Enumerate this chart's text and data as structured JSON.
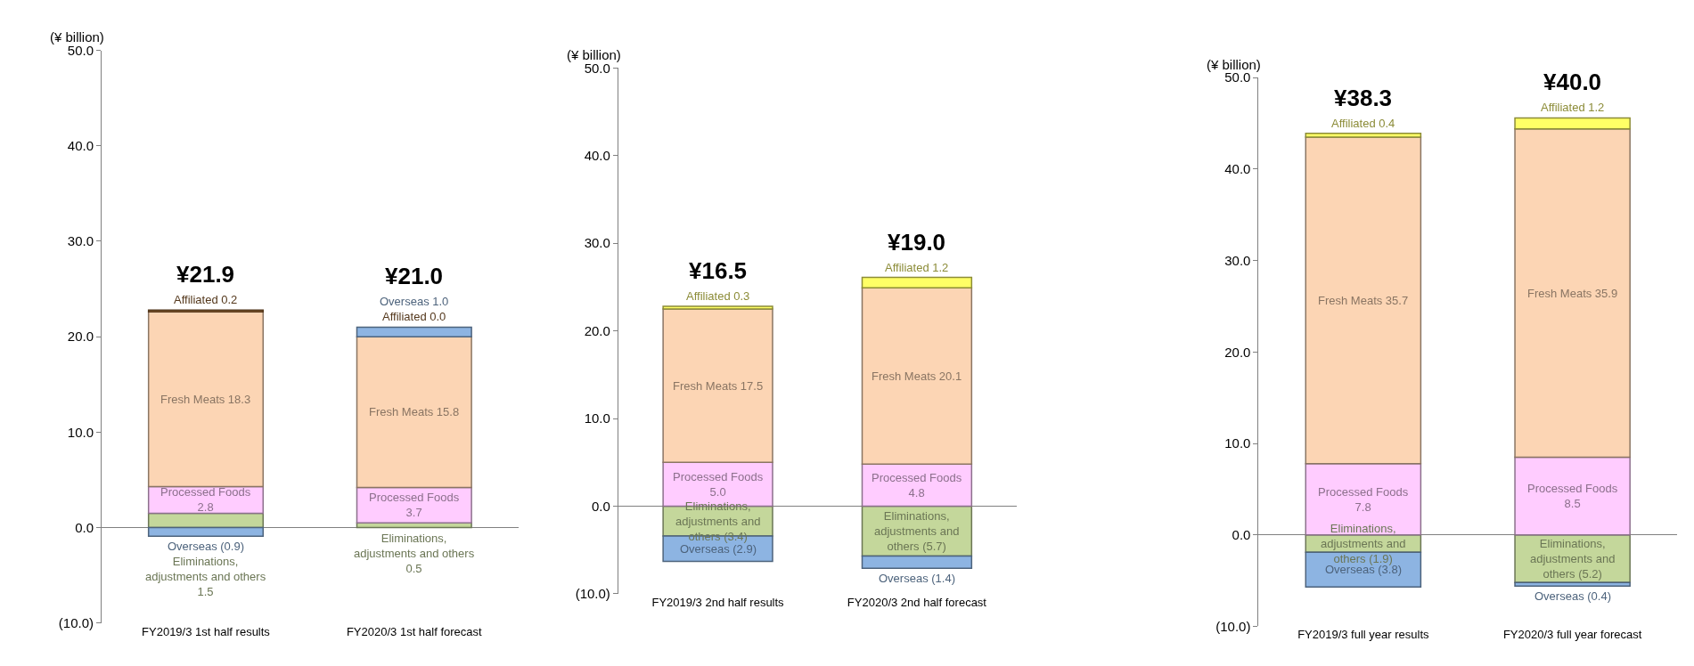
{
  "chart_data": [
    {
      "type": "bar",
      "stacked": true,
      "ylabel": "(¥ billion)",
      "categories": [
        "FY2019/3 1st half results",
        "FY2020/3 1st half forecast"
      ],
      "ylim": [
        -10,
        50
      ],
      "yticks": [
        {
          "value": -10,
          "label": "(10.0)"
        },
        {
          "value": 0,
          "label": "0.0"
        },
        {
          "value": 10,
          "label": "10.0"
        },
        {
          "value": 20,
          "label": "20.0"
        },
        {
          "value": 30,
          "label": "30.0"
        },
        {
          "value": 40,
          "label": "40.0"
        },
        {
          "value": 50,
          "label": "50.0"
        }
      ],
      "totals": [
        "¥21.9",
        "¥21.0"
      ],
      "series": [
        {
          "color": "#c4d79b",
          "values": [
            1.5,
            0.5
          ],
          "value_labels": [
            "Eliminations, adjustments and others 1.5",
            "Eliminations, adjustments and others 0.5"
          ]
        },
        {
          "color": "#ffccff",
          "values": [
            2.8,
            3.7
          ],
          "value_labels": [
            "Processed Foods 2.8",
            "Processed Foods 3.7"
          ]
        },
        {
          "color": "#fcd5b4",
          "values": [
            18.3,
            15.8
          ],
          "value_labels": [
            "Fresh Meats 18.3",
            "Fresh Meats 15.8"
          ]
        },
        {
          "color": "#996633",
          "values": [
            0.2,
            0.0
          ],
          "value_labels": [
            "Affiliated 0.2",
            "Affiliated 0.0"
          ]
        },
        {
          "color": "#8db4e2",
          "values": [
            -0.9,
            1.0
          ],
          "value_labels": [
            "Overseas (0.9)",
            "Overseas 1.0"
          ]
        }
      ]
    },
    {
      "type": "bar",
      "stacked": true,
      "ylabel": "(¥ billion)",
      "categories": [
        "FY2019/3 2nd half results",
        "FY2020/3 2nd half forecast"
      ],
      "ylim": [
        -10,
        50
      ],
      "yticks": [
        {
          "value": -10,
          "label": "(10.0)"
        },
        {
          "value": 0,
          "label": "0.0"
        },
        {
          "value": 10,
          "label": "10.0"
        },
        {
          "value": 20,
          "label": "20.0"
        },
        {
          "value": 30,
          "label": "30.0"
        },
        {
          "value": 40,
          "label": "40.0"
        },
        {
          "value": 50,
          "label": "50.0"
        }
      ],
      "totals": [
        "¥16.5",
        "¥19.0"
      ],
      "series": [
        {
          "color": "#c4d79b",
          "values": [
            -3.4,
            -5.7
          ],
          "value_labels": [
            "Eliminations, adjustments and others (3.4)",
            "Eliminations, adjustments and others (5.7)"
          ]
        },
        {
          "color": "#8db4e2",
          "values": [
            -2.9,
            -1.4
          ],
          "value_labels": [
            "Overseas (2.9)",
            "Overseas (1.4)"
          ]
        },
        {
          "color": "#ffccff",
          "values": [
            5.0,
            4.8
          ],
          "value_labels": [
            "Processed Foods 5.0",
            "Processed Foods 4.8"
          ]
        },
        {
          "color": "#fcd5b4",
          "values": [
            17.5,
            20.1
          ],
          "value_labels": [
            "Fresh Meats 17.5",
            "Fresh Meats 20.1"
          ]
        },
        {
          "color": "#ffff66",
          "values": [
            0.3,
            1.2
          ],
          "value_labels": [
            "Affiliated 0.3",
            "Affiliated 1.2"
          ]
        }
      ]
    },
    {
      "type": "bar",
      "stacked": true,
      "ylabel": "(¥ billion)",
      "categories": [
        "FY2019/3 full year results",
        "FY2020/3 full year forecast"
      ],
      "ylim": [
        -10,
        50
      ],
      "yticks": [
        {
          "value": -10,
          "label": "(10.0)"
        },
        {
          "value": 0,
          "label": "0.0"
        },
        {
          "value": 10,
          "label": "10.0"
        },
        {
          "value": 20,
          "label": "20.0"
        },
        {
          "value": 30,
          "label": "30.0"
        },
        {
          "value": 40,
          "label": "40.0"
        },
        {
          "value": 50,
          "label": "50.0"
        }
      ],
      "totals": [
        "¥38.3",
        "¥40.0"
      ],
      "series": [
        {
          "color": "#c4d79b",
          "values": [
            -1.9,
            -5.2
          ],
          "value_labels": [
            "Eliminations, adjustments and others (1.9)",
            "Eliminations, adjustments and others (5.2)"
          ]
        },
        {
          "color": "#8db4e2",
          "values": [
            -3.8,
            -0.4
          ],
          "value_labels": [
            "Overseas (3.8)",
            "Overseas (0.4)"
          ]
        },
        {
          "color": "#ffccff",
          "values": [
            7.8,
            8.5
          ],
          "value_labels": [
            "Processed Foods 7.8",
            "Processed Foods 8.5"
          ]
        },
        {
          "color": "#fcd5b4",
          "values": [
            35.7,
            35.9
          ],
          "value_labels": [
            "Fresh Meats 35.7",
            "Fresh Meats 35.9"
          ]
        },
        {
          "color": "#ffff66",
          "values": [
            0.4,
            1.2
          ],
          "value_labels": [
            "Affiliated 0.4",
            "Affiliated 1.2"
          ]
        }
      ]
    }
  ]
}
